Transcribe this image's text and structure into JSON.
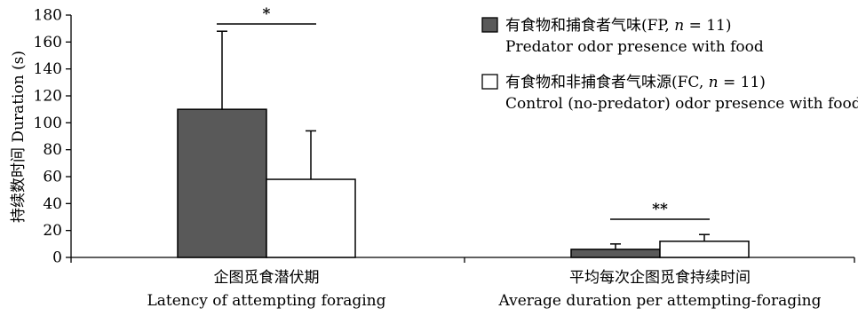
{
  "chart_data": {
    "type": "bar",
    "ylabel": "持续数时间 Duration (s)",
    "ylim": [
      0,
      180
    ],
    "yticks": [
      0,
      20,
      40,
      60,
      80,
      100,
      120,
      140,
      160,
      180
    ],
    "categories": [
      {
        "zh": "企图觅食潜伏期",
        "en": "Latency of attempting foraging"
      },
      {
        "zh": "平均每次企图觅食持续时间",
        "en": "Average duration per attempting-foraging"
      }
    ],
    "series": [
      {
        "name_zh": "有食物和捕食者气味(FP, n = 11)",
        "name_en": "Predator odor presence with food",
        "color": "#595959",
        "values": [
          110,
          6
        ],
        "errors": [
          58,
          4
        ]
      },
      {
        "name_zh": "有食物和非捕食者气味源(FC, n = 11)",
        "name_en": "Control (no-predator) odor presence with food",
        "color": "#ffffff",
        "values": [
          58,
          12
        ],
        "errors": [
          36,
          5
        ]
      }
    ],
    "significance": [
      "*",
      "**"
    ],
    "legend_position": "top-right"
  }
}
